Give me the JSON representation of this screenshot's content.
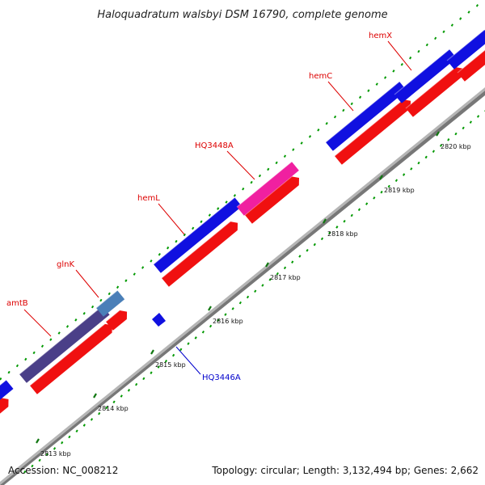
{
  "title": "Haloquadratum walsbyi DSM 16790, complete genome",
  "footer": {
    "accession": "Accession: NC_008212",
    "summary": "Topology: circular; Length: 3,132,494 bp; Genes: 2,662"
  },
  "colors": {
    "forward_cds": "#1010e0",
    "reverse_cds": "#f01010",
    "amtB": "#4a3f88",
    "glnK": "#4a7fb8",
    "HQ3448A": "#f020a0",
    "backbone": "#999999",
    "tick_major": "#117711",
    "tick_minor": "#009900",
    "label_red": "#dd0000",
    "label_blue": "#0000cc"
  },
  "scale_labels": [
    "2813 kbp",
    "2814 kbp",
    "2815 kbp",
    "2816 kbp",
    "2817 kbp",
    "2818 kbp",
    "2819 kbp",
    "2820 kbp"
  ],
  "gene_labels": [
    {
      "id": "amtB",
      "text": "amtB",
      "color": "label_red"
    },
    {
      "id": "glnK",
      "text": "glnK",
      "color": "label_red"
    },
    {
      "id": "hemL",
      "text": "hemL",
      "color": "label_red"
    },
    {
      "id": "HQ3448A",
      "text": "HQ3448A",
      "color": "label_red"
    },
    {
      "id": "hemC",
      "text": "hemC",
      "color": "label_red"
    },
    {
      "id": "hemX",
      "text": "hemX",
      "color": "label_red"
    },
    {
      "id": "HQ3446A",
      "text": "HQ3446A",
      "color": "label_blue"
    }
  ]
}
